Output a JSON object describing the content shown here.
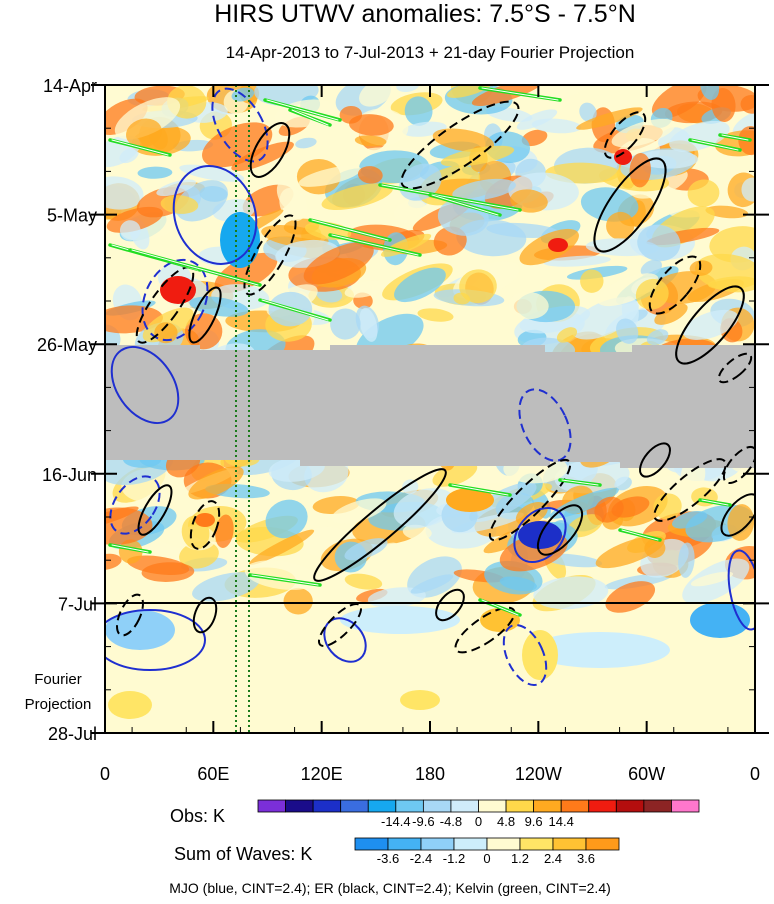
{
  "title": "HIRS UTWV anomalies: 7.5°S - 7.5°N",
  "subtitle": "14-Apr-2013 to 7-Jul-2013 + 21-day Fourier Projection",
  "footer": "MJO (blue, CINT=2.4); ER (black, CINT=2.4); Kelvin (green, CINT=2.4)",
  "projection_label": [
    "Fourier",
    "Projection"
  ],
  "colors": {
    "mjo": "#1f2fd0",
    "er": "#000000",
    "kelvin": "#22dd22",
    "missing": "#bdbdbd",
    "guide_lines": "#1a7a1a"
  },
  "chart_data": {
    "type": "heatmap",
    "x_axis": {
      "ticks": [
        "0",
        "60E",
        "120E",
        "180",
        "120W",
        "60W",
        "0"
      ],
      "tick_values": [
        0,
        60,
        120,
        180,
        240,
        300,
        360
      ],
      "range": [
        0,
        360
      ],
      "units": "degrees longitude"
    },
    "y_axis": {
      "ticks": [
        "14-Apr",
        "5-May",
        "26-May",
        "16-Jun",
        "7-Jul",
        "28-Jul"
      ],
      "range": [
        "2013-04-14",
        "2013-07-28"
      ],
      "direction": "time increases downward"
    },
    "observation_end": "2013-07-07",
    "missing_data_period": [
      "2013-05-26",
      "2013-06-14"
    ],
    "guide_lines_longitude": [
      73,
      80
    ],
    "obs_colorbar": {
      "label": "Obs: K",
      "levels": [
        "-14.4",
        "-9.6",
        "-4.8",
        "0",
        "4.8",
        "9.6",
        "14.4"
      ],
      "colors": [
        "#7b2fd9",
        "#1a0c8a",
        "#1c2fc8",
        "#3a6de0",
        "#16a8ef",
        "#6ec8f2",
        "#a8d8f6",
        "#d0ecfa",
        "#fffbd1",
        "#ffd84a",
        "#ffaa20",
        "#ff7a1a",
        "#f01c10",
        "#b40e0e",
        "#8c2424",
        "#ff77cc"
      ]
    },
    "waves_colorbar": {
      "label": "Sum of Waves: K",
      "levels": [
        "-3.6",
        "-2.4",
        "-1.2",
        "0",
        "1.2",
        "2.4",
        "3.6"
      ],
      "colors": [
        "#1e8ff0",
        "#44b2f4",
        "#8fd0f8",
        "#cdeefb",
        "#fffbd1",
        "#ffe566",
        "#ffc233",
        "#ff9a1a"
      ]
    },
    "wave_contours": [
      {
        "name": "MJO",
        "color": "blue",
        "cint": 2.4
      },
      {
        "name": "ER",
        "color": "black",
        "cint": 2.4
      },
      {
        "name": "Kelvin",
        "color": "green",
        "cint": 2.4
      }
    ]
  }
}
